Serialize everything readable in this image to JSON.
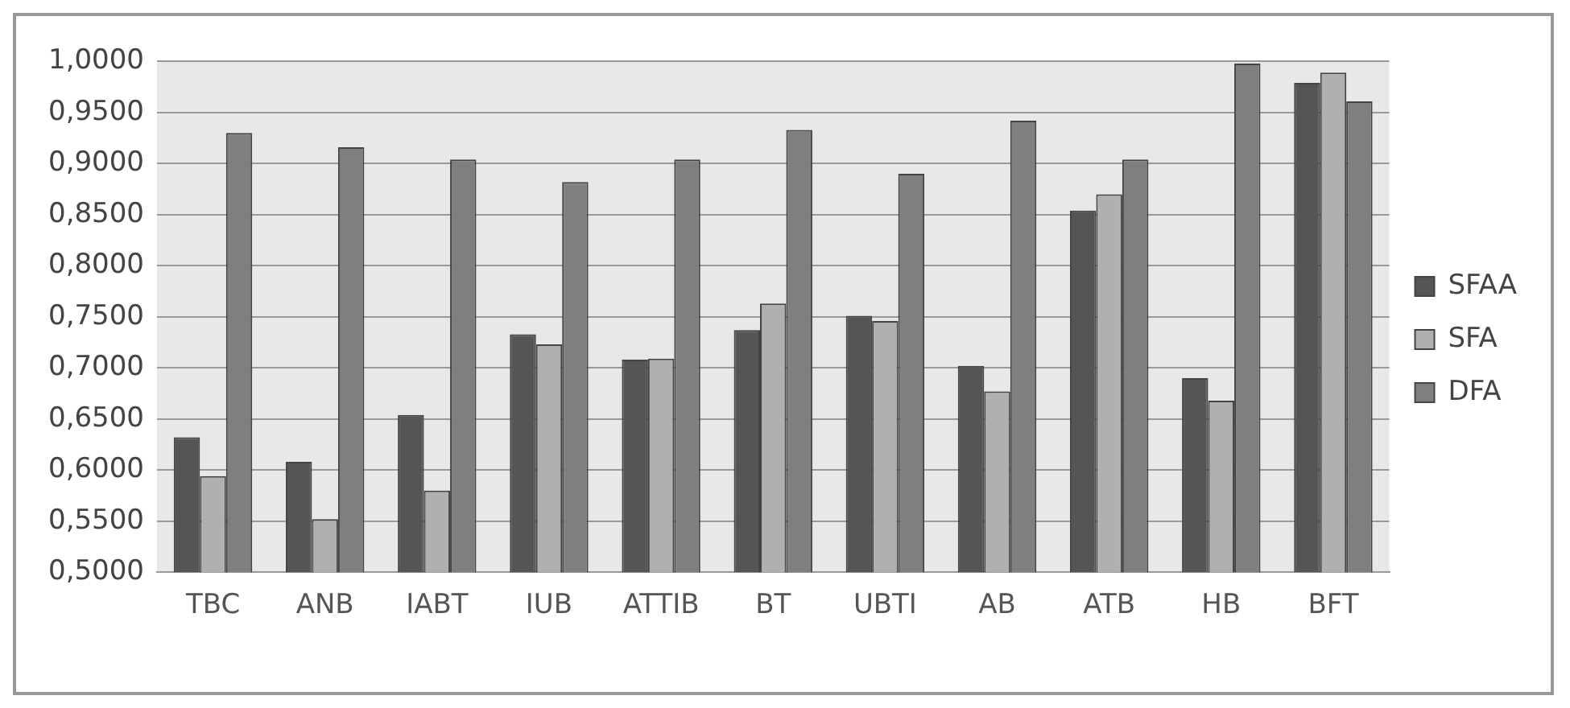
{
  "chart_data": {
    "type": "bar",
    "categories": [
      "TBC",
      "ANB",
      "IABT",
      "IUB",
      "ATTIB",
      "BT",
      "UBTI",
      "AB",
      "ATB",
      "HB",
      "BFT"
    ],
    "series": [
      {
        "name": "SFAA",
        "color": "#555555",
        "values": [
          0.632,
          0.608,
          0.654,
          0.733,
          0.708,
          0.737,
          0.751,
          0.702,
          0.854,
          0.69,
          0.979
        ]
      },
      {
        "name": "SFA",
        "color": "#b0b0b0",
        "values": [
          0.594,
          0.552,
          0.58,
          0.723,
          0.709,
          0.763,
          0.746,
          0.677,
          0.87,
          0.668,
          0.989
        ]
      },
      {
        "name": "DFA",
        "color": "#7f7f7f",
        "values": [
          0.93,
          0.916,
          0.904,
          0.882,
          0.904,
          0.933,
          0.89,
          0.942,
          0.904,
          0.998,
          0.961
        ]
      }
    ],
    "ylim": [
      0.5,
      1.0
    ],
    "yticks": [
      {
        "value": 0.5,
        "label": "0,5000"
      },
      {
        "value": 0.55,
        "label": "0,5500"
      },
      {
        "value": 0.6,
        "label": "0,6000"
      },
      {
        "value": 0.65,
        "label": "0,6500"
      },
      {
        "value": 0.7,
        "label": "0,7000"
      },
      {
        "value": 0.75,
        "label": "0,7500"
      },
      {
        "value": 0.8,
        "label": "0,8000"
      },
      {
        "value": 0.85,
        "label": "0,8500"
      },
      {
        "value": 0.9,
        "label": "0,9000"
      },
      {
        "value": 0.95,
        "label": "0,9500"
      },
      {
        "value": 1.0,
        "label": "1,0000"
      }
    ],
    "grid": "y",
    "legend": "right"
  }
}
